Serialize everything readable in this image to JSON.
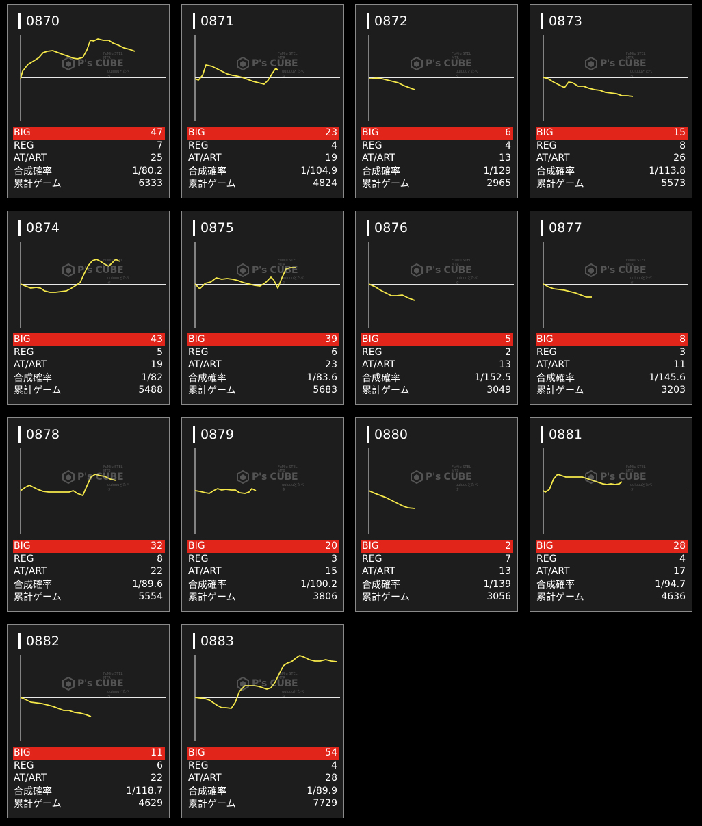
{
  "labels": {
    "big": "BIG",
    "reg": "REG",
    "at": "AT/ART",
    "rate": "合成確率",
    "games": "累計ゲーム"
  },
  "watermark": {
    "brand": "P's CUBE",
    "tagline_top": "FuMiu STEL MTR",
    "tagline_bottom": "uuiuuuとたべタ"
  },
  "colors": {
    "line": "#f5e84a",
    "big_bg": "#e1251b",
    "card_bg": "#1d1d1d"
  },
  "cards": [
    {
      "id": "0870",
      "big": "47",
      "reg": "7",
      "at": "25",
      "rate": "1/80.2",
      "games": "6333"
    },
    {
      "id": "0871",
      "big": "23",
      "reg": "4",
      "at": "19",
      "rate": "1/104.9",
      "games": "4824"
    },
    {
      "id": "0872",
      "big": "6",
      "reg": "4",
      "at": "13",
      "rate": "1/129",
      "games": "2965"
    },
    {
      "id": "0873",
      "big": "15",
      "reg": "8",
      "at": "26",
      "rate": "1/113.8",
      "games": "5573"
    },
    {
      "id": "0874",
      "big": "43",
      "reg": "5",
      "at": "19",
      "rate": "1/82",
      "games": "5488"
    },
    {
      "id": "0875",
      "big": "39",
      "reg": "6",
      "at": "23",
      "rate": "1/83.6",
      "games": "5683"
    },
    {
      "id": "0876",
      "big": "5",
      "reg": "2",
      "at": "13",
      "rate": "1/152.5",
      "games": "3049"
    },
    {
      "id": "0877",
      "big": "8",
      "reg": "3",
      "at": "11",
      "rate": "1/145.6",
      "games": "3203"
    },
    {
      "id": "0878",
      "big": "32",
      "reg": "8",
      "at": "22",
      "rate": "1/89.6",
      "games": "5554"
    },
    {
      "id": "0879",
      "big": "20",
      "reg": "3",
      "at": "15",
      "rate": "1/100.2",
      "games": "3806"
    },
    {
      "id": "0880",
      "big": "2",
      "reg": "7",
      "at": "13",
      "rate": "1/139",
      "games": "3056"
    },
    {
      "id": "0881",
      "big": "28",
      "reg": "4",
      "at": "17",
      "rate": "1/94.7",
      "games": "4636"
    },
    {
      "id": "0882",
      "big": "11",
      "reg": "6",
      "at": "22",
      "rate": "1/118.7",
      "games": "4629"
    },
    {
      "id": "0883",
      "big": "54",
      "reg": "4",
      "at": "28",
      "rate": "1/89.9",
      "games": "7729"
    }
  ]
}
